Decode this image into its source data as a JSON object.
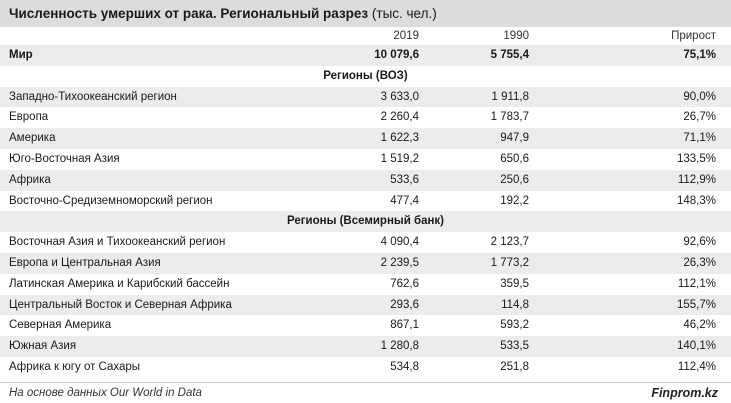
{
  "title": {
    "main": "Численность умерших от рака. Региональный разрез",
    "unit": " (тыс. чел.)"
  },
  "columns": [
    "2019",
    "1990",
    "Прирост"
  ],
  "world": {
    "name": "Мир",
    "v2019": "10 079,6",
    "v1990": "5 755,4",
    "growth": "75,1%"
  },
  "sections": [
    {
      "title": "Регионы (ВОЗ)",
      "rows": [
        {
          "name": "Западно-Тихоокеанский регион",
          "v2019": "3 633,0",
          "v1990": "1 911,8",
          "growth": "90,0%"
        },
        {
          "name": "Европа",
          "v2019": "2 260,4",
          "v1990": "1 783,7",
          "growth": "26,7%"
        },
        {
          "name": "Америка",
          "v2019": "1 622,3",
          "v1990": "947,9",
          "growth": "71,1%"
        },
        {
          "name": "Юго-Восточная Азия",
          "v2019": "1 519,2",
          "v1990": "650,6",
          "growth": "133,5%"
        },
        {
          "name": "Африка",
          "v2019": "533,6",
          "v1990": "250,6",
          "growth": "112,9%"
        },
        {
          "name": "Восточно-Средиземноморский регион",
          "v2019": "477,4",
          "v1990": "192,2",
          "growth": "148,3%"
        }
      ]
    },
    {
      "title": "Регионы (Всемирный банк)",
      "rows": [
        {
          "name": "Восточная Азия и Тихоокеанский регион",
          "v2019": "4 090,4",
          "v1990": "2 123,7",
          "growth": "92,6%"
        },
        {
          "name": "Европа и Центральная Азия",
          "v2019": "2 239,5",
          "v1990": "1 773,2",
          "growth": "26,3%"
        },
        {
          "name": "Латинская Америка и Карибский бассейн",
          "v2019": "762,6",
          "v1990": "359,5",
          "growth": "112,1%"
        },
        {
          "name": "Центральный Восток и Северная Африка",
          "v2019": "293,6",
          "v1990": "114,8",
          "growth": "155,7%"
        },
        {
          "name": "Северная Америка",
          "v2019": "867,1",
          "v1990": "593,2",
          "growth": "46,2%"
        },
        {
          "name": "Южная Азия",
          "v2019": "1 280,8",
          "v1990": "533,5",
          "growth": "140,1%"
        },
        {
          "name": "Африка к югу от Сахары",
          "v2019": "534,8",
          "v1990": "251,8",
          "growth": "112,4%"
        }
      ]
    }
  ],
  "footer": {
    "source": "На основе данных Our World in Data",
    "brand": "Finprom.kz"
  }
}
